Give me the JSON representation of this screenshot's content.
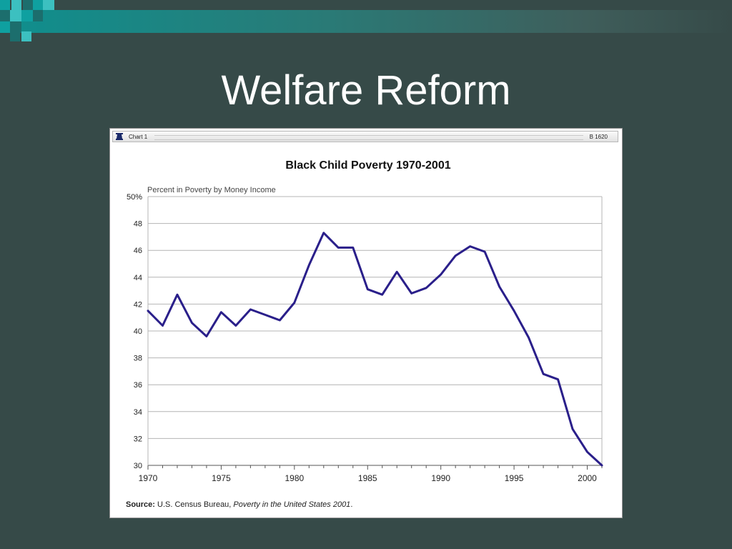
{
  "slide": {
    "title": "Welfare Reform"
  },
  "chart_panel": {
    "header_left": "Chart 1",
    "header_right": "B 1620",
    "source_label": "Source:",
    "source_text": " U.S. Census Bureau, ",
    "source_italic": "Poverty in the United States 2001",
    "source_end": "."
  },
  "chart_data": {
    "type": "line",
    "title": "Black Child Poverty 1970-2001",
    "ylabel": "Percent in Poverty by Money Income",
    "xlabel": "",
    "xlim": [
      1970,
      2001
    ],
    "ylim": [
      30,
      50
    ],
    "grid": true,
    "legend": "none",
    "line_color": "#2a1f8a",
    "x_ticks": [
      "1970",
      "1975",
      "1980",
      "1985",
      "1990",
      "1995",
      "2000"
    ],
    "y_ticks": [
      "30",
      "32",
      "34",
      "36",
      "38",
      "40",
      "42",
      "44",
      "46",
      "48",
      "50%"
    ],
    "series": [
      {
        "x": [
          1970,
          1971,
          1972,
          1973,
          1974,
          1975,
          1976,
          1977,
          1978,
          1979,
          1980,
          1981,
          1982,
          1983,
          1984,
          1985,
          1986,
          1987,
          1988,
          1989,
          1990,
          1991,
          1992,
          1993,
          1994,
          1995,
          1996,
          1997,
          1998,
          1999,
          2000,
          2001
        ],
        "values": [
          41.5,
          40.4,
          42.7,
          40.6,
          39.6,
          41.4,
          40.4,
          41.6,
          41.2,
          40.8,
          42.1,
          44.9,
          47.3,
          46.2,
          46.2,
          43.1,
          42.7,
          44.4,
          42.8,
          43.2,
          44.2,
          45.6,
          46.3,
          45.9,
          43.3,
          41.5,
          39.5,
          36.8,
          36.4,
          32.7,
          31.0,
          30.0
        ]
      }
    ]
  }
}
